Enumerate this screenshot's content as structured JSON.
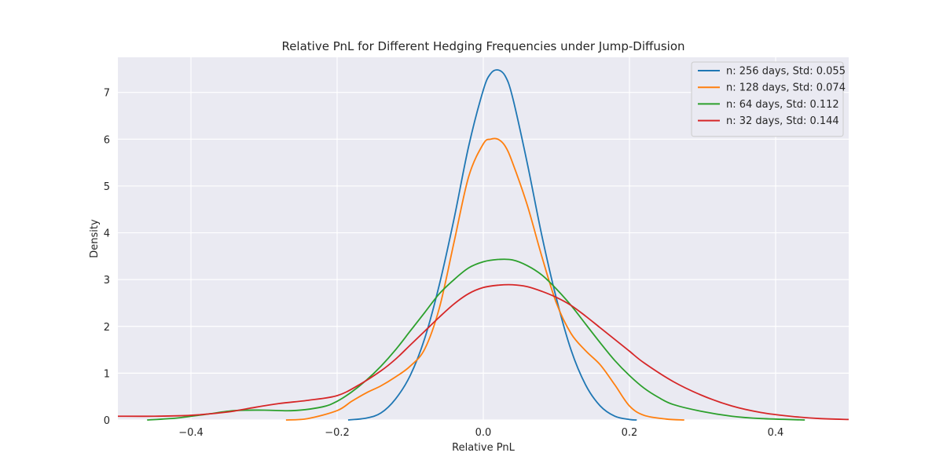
{
  "chart_data": {
    "type": "line",
    "title": "Relative PnL for Different Hedging Frequencies under Jump-Diffusion",
    "xlabel": "Relative PnL",
    "ylabel": "Density",
    "xlim": [
      -0.5,
      0.5
    ],
    "ylim": [
      0,
      7.75
    ],
    "xticks": [
      -0.4,
      -0.2,
      0.0,
      0.2,
      0.4
    ],
    "xtick_labels": [
      "−0.4",
      "−0.2",
      "0.0",
      "0.2",
      "0.4"
    ],
    "yticks": [
      0,
      1,
      2,
      3,
      4,
      5,
      6,
      7
    ],
    "ytick_labels": [
      "0",
      "1",
      "2",
      "3",
      "4",
      "5",
      "6",
      "7"
    ],
    "grid": true,
    "legend_position": "top-right",
    "background": "#eaeaf2",
    "series": [
      {
        "name": "n: 256 days, Std: 0.055",
        "color": "#1f77b4",
        "x": [
          -0.185,
          -0.16,
          -0.14,
          -0.12,
          -0.1,
          -0.08,
          -0.06,
          -0.04,
          -0.02,
          0.0,
          0.01,
          0.02,
          0.03,
          0.04,
          0.06,
          0.08,
          0.1,
          0.12,
          0.14,
          0.16,
          0.18,
          0.2,
          0.21
        ],
        "y": [
          0.0,
          0.04,
          0.15,
          0.45,
          0.95,
          1.75,
          2.9,
          4.3,
          5.85,
          7.05,
          7.4,
          7.48,
          7.35,
          6.9,
          5.5,
          3.95,
          2.6,
          1.5,
          0.75,
          0.3,
          0.08,
          0.01,
          0.0
        ]
      },
      {
        "name": "n: 128 days, Std: 0.074",
        "color": "#ff7f0e",
        "x": [
          -0.27,
          -0.24,
          -0.2,
          -0.18,
          -0.16,
          -0.14,
          -0.12,
          -0.1,
          -0.08,
          -0.06,
          -0.04,
          -0.02,
          0.0,
          0.01,
          0.02,
          0.03,
          0.04,
          0.06,
          0.08,
          0.1,
          0.12,
          0.14,
          0.16,
          0.18,
          0.2,
          0.22,
          0.25,
          0.275
        ],
        "y": [
          0.0,
          0.03,
          0.2,
          0.4,
          0.58,
          0.73,
          0.92,
          1.15,
          1.52,
          2.4,
          3.8,
          5.2,
          5.9,
          6.0,
          6.0,
          5.85,
          5.5,
          4.6,
          3.5,
          2.5,
          1.85,
          1.48,
          1.18,
          0.75,
          0.3,
          0.1,
          0.02,
          0.0
        ]
      },
      {
        "name": "n: 64 days, Std: 0.112",
        "color": "#2ca02c",
        "x": [
          -0.46,
          -0.42,
          -0.38,
          -0.34,
          -0.3,
          -0.26,
          -0.22,
          -0.2,
          -0.18,
          -0.16,
          -0.14,
          -0.12,
          -0.1,
          -0.08,
          -0.06,
          -0.04,
          -0.02,
          0.0,
          0.02,
          0.04,
          0.06,
          0.08,
          0.1,
          0.12,
          0.14,
          0.16,
          0.18,
          0.2,
          0.22,
          0.24,
          0.26,
          0.3,
          0.34,
          0.38,
          0.44
        ],
        "y": [
          0.0,
          0.04,
          0.12,
          0.2,
          0.21,
          0.2,
          0.28,
          0.4,
          0.6,
          0.85,
          1.15,
          1.5,
          1.9,
          2.3,
          2.7,
          3.0,
          3.25,
          3.38,
          3.43,
          3.42,
          3.3,
          3.1,
          2.8,
          2.45,
          2.05,
          1.65,
          1.27,
          0.95,
          0.68,
          0.48,
          0.33,
          0.18,
          0.08,
          0.03,
          0.0
        ]
      },
      {
        "name": "n: 32 days, Std: 0.144",
        "color": "#d62728",
        "x": [
          -0.5,
          -0.45,
          -0.4,
          -0.35,
          -0.32,
          -0.28,
          -0.24,
          -0.2,
          -0.17,
          -0.14,
          -0.12,
          -0.1,
          -0.08,
          -0.06,
          -0.04,
          -0.02,
          0.0,
          0.02,
          0.04,
          0.06,
          0.08,
          0.1,
          0.12,
          0.14,
          0.16,
          0.18,
          0.2,
          0.22,
          0.26,
          0.3,
          0.34,
          0.38,
          0.42,
          0.46,
          0.5
        ],
        "y": [
          0.08,
          0.08,
          0.1,
          0.17,
          0.25,
          0.35,
          0.42,
          0.52,
          0.75,
          1.05,
          1.3,
          1.6,
          1.9,
          2.2,
          2.48,
          2.7,
          2.83,
          2.88,
          2.89,
          2.85,
          2.75,
          2.62,
          2.45,
          2.22,
          1.97,
          1.72,
          1.47,
          1.22,
          0.82,
          0.52,
          0.3,
          0.16,
          0.08,
          0.03,
          0.01
        ]
      }
    ]
  }
}
